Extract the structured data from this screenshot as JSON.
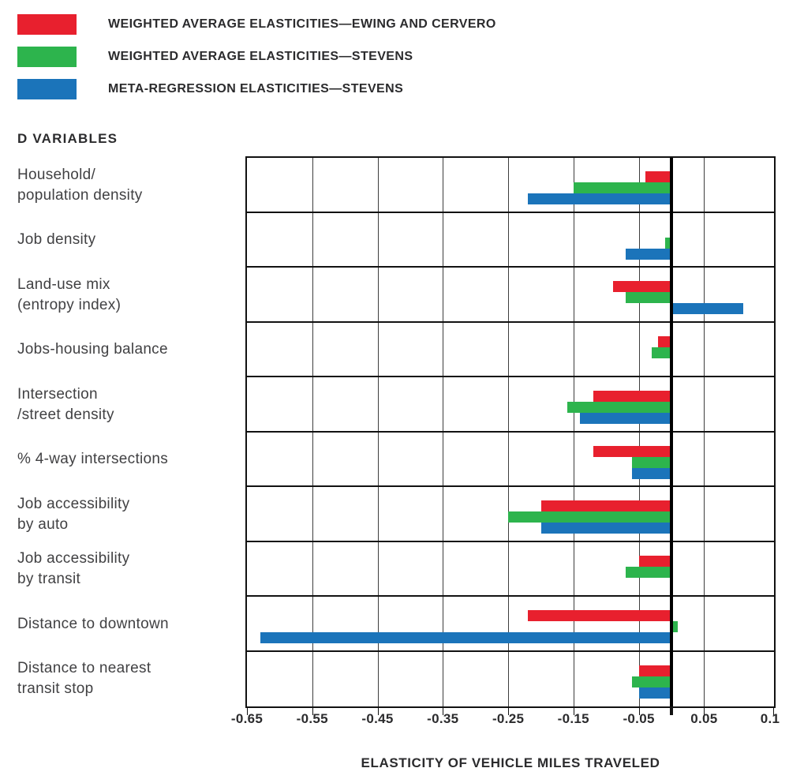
{
  "heading": "D VARIABLES",
  "legend": [
    {
      "key": "ewing-cervero",
      "label": "WEIGHTED AVERAGE ELASTICITIES—EWING AND CERVERO",
      "color": "#e8202e"
    },
    {
      "key": "stevens-weighted",
      "label": "WEIGHTED AVERAGE ELASTICITIES—STEVENS",
      "color": "#2db44d"
    },
    {
      "key": "stevens-meta",
      "label": "META-REGRESSION ELASTICITIES—STEVENS",
      "color": "#1b74ba"
    }
  ],
  "chart_data": {
    "type": "bar",
    "orientation": "horizontal",
    "title": "",
    "xlabel": "ELASTICITY OF VEHICLE MILES TRAVELED",
    "ylabel": "D VARIABLES",
    "grid": true,
    "legend_position": "top-left",
    "xlim": [
      -0.65,
      0.1
    ],
    "xticks": [
      -0.65,
      -0.55,
      -0.45,
      -0.35,
      -0.25,
      -0.15,
      -0.05,
      0.05
    ],
    "xtick_labels": [
      "-0.65",
      "-0.55",
      "-0.45",
      "-0.35",
      "-0.25",
      "-0.15",
      "-0.05",
      "0.05"
    ],
    "right_edge_label": "0.1",
    "zero_line": true,
    "categories": [
      "Household/\npopulation density",
      "Job density",
      "Land-use mix\n(entropy index)",
      "Jobs-housing balance",
      "Intersection\n/street density",
      "% 4-way intersections",
      "Job accessibility\nby auto",
      "Job accessibility\nby transit",
      "Distance to downtown",
      "Distance to nearest\ntransit stop"
    ],
    "series": [
      {
        "key": "ewing-cervero",
        "name": "Weighted average elasticities—Ewing and Cervero",
        "color": "#e8202e",
        "values": [
          -0.04,
          0,
          -0.09,
          -0.02,
          -0.12,
          -0.12,
          -0.2,
          -0.05,
          -0.22,
          -0.05
        ]
      },
      {
        "key": "stevens-weighted",
        "name": "Weighted average elasticities—Stevens",
        "color": "#2db44d",
        "values": [
          -0.15,
          -0.01,
          -0.07,
          -0.03,
          -0.16,
          -0.06,
          -0.25,
          -0.07,
          0.01,
          -0.06
        ]
      },
      {
        "key": "stevens-meta",
        "name": "Meta-regression elasticities—Stevens",
        "color": "#1b74ba",
        "values": [
          -0.22,
          -0.07,
          0.11,
          0,
          -0.14,
          -0.06,
          -0.2,
          0,
          -0.63,
          -0.05
        ]
      }
    ]
  }
}
